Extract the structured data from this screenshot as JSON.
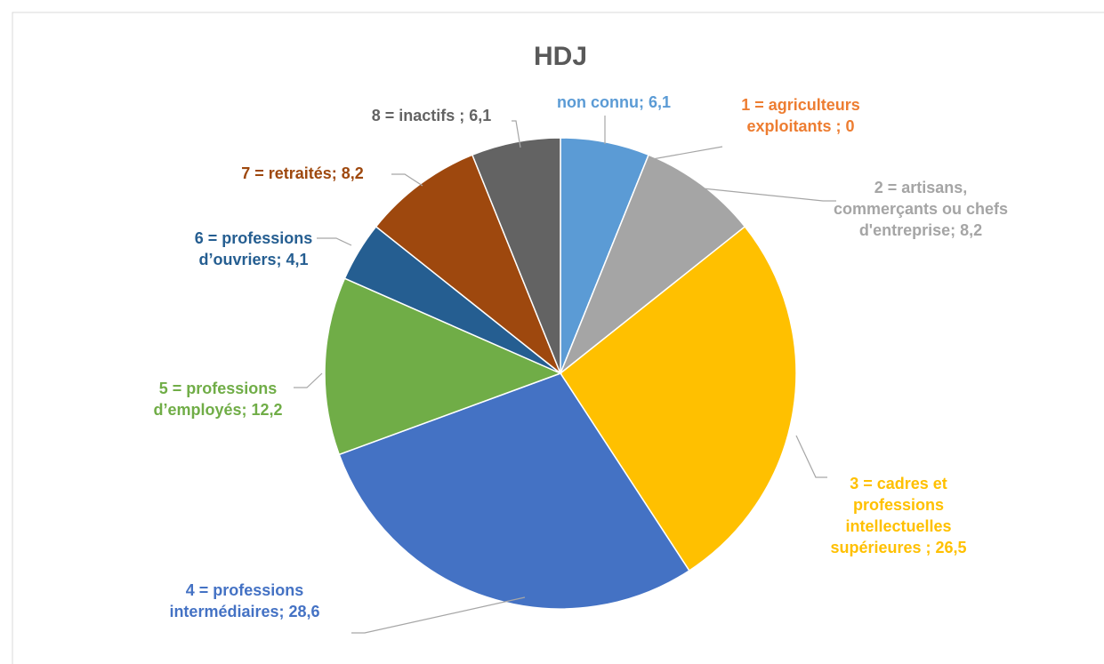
{
  "chart_data": {
    "type": "pie",
    "title": "HDJ",
    "categories": [
      "non connu;",
      "1 = agriculteurs exploitants ;",
      "2 = artisans, commerçants ou chefs d'entreprise;",
      "3 = cadres et professions intellectuelles supérieures ;",
      "4 = professions intermédiaires;",
      "5 = professions d’employés;",
      "6 = professions d’ouvriers;",
      "7 = retraités;",
      "8 = inactifs ;"
    ],
    "values": [
      6.1,
      0,
      8.2,
      26.5,
      28.6,
      12.2,
      4.1,
      8.2,
      6.1
    ],
    "value_labels": [
      "6,1",
      "0",
      "8,2",
      "26,5",
      "28,6",
      "12,2",
      "4,1",
      "8,2",
      "6,1"
    ],
    "colors": [
      "#5b9bd5",
      "#ed7d31",
      "#a5a5a5",
      "#ffc000",
      "#4472c4",
      "#70ad47",
      "#255e91",
      "#9e480e",
      "#636363"
    ]
  }
}
